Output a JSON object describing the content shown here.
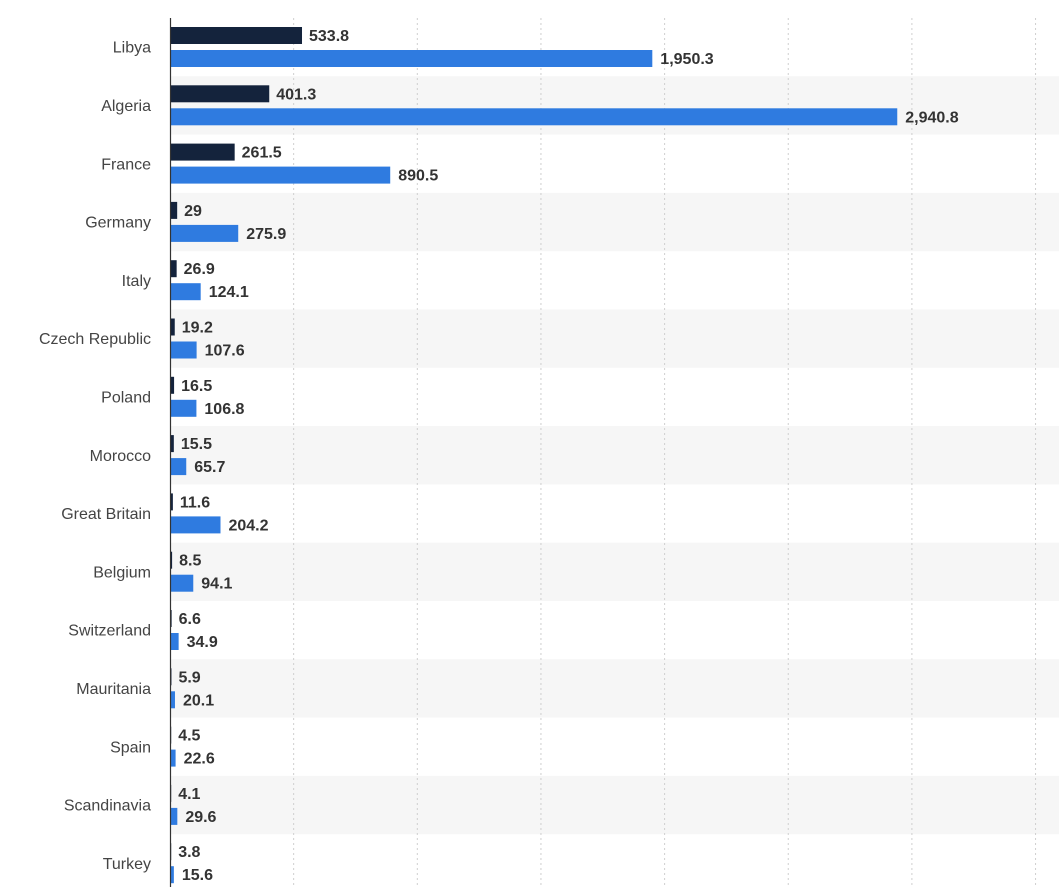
{
  "chart_data": {
    "type": "bar",
    "orientation": "horizontal",
    "categories": [
      "Libya",
      "Algeria",
      "France",
      "Germany",
      "Italy",
      "Czech Republic",
      "Poland",
      "Morocco",
      "Great Britain",
      "Belgium",
      "Switzerland",
      "Mauritania",
      "Spain",
      "Scandinavia",
      "Turkey"
    ],
    "series": [
      {
        "color": "#14233c",
        "values": [
          533.8,
          401.3,
          261.5,
          29,
          26.9,
          19.2,
          16.5,
          15.5,
          11.6,
          8.5,
          6.6,
          5.9,
          4.5,
          4.1,
          3.8
        ],
        "labels": [
          "533.8",
          "401.3",
          "261.5",
          "29",
          "26.9",
          "19.2",
          "16.5",
          "15.5",
          "11.6",
          "8.5",
          "6.6",
          "5.9",
          "4.5",
          "4.1",
          "3.8"
        ]
      },
      {
        "color": "#2f7be0",
        "values": [
          1950.3,
          2940.8,
          890.5,
          275.9,
          124.1,
          107.6,
          106.8,
          65.7,
          204.2,
          94.1,
          34.9,
          20.1,
          22.6,
          29.6,
          15.6
        ],
        "labels": [
          "1,950.3",
          "2,940.8",
          "890.5",
          "275.9",
          "124.1",
          "107.6",
          "106.8",
          "65.7",
          "204.2",
          "94.1",
          "34.9",
          "20.1",
          "22.6",
          "29.6",
          "15.6"
        ]
      }
    ],
    "xlim": [
      0,
      3500
    ],
    "grid": true,
    "grid_style": "dotted-vertical",
    "row_banding": true,
    "legend": "none"
  }
}
